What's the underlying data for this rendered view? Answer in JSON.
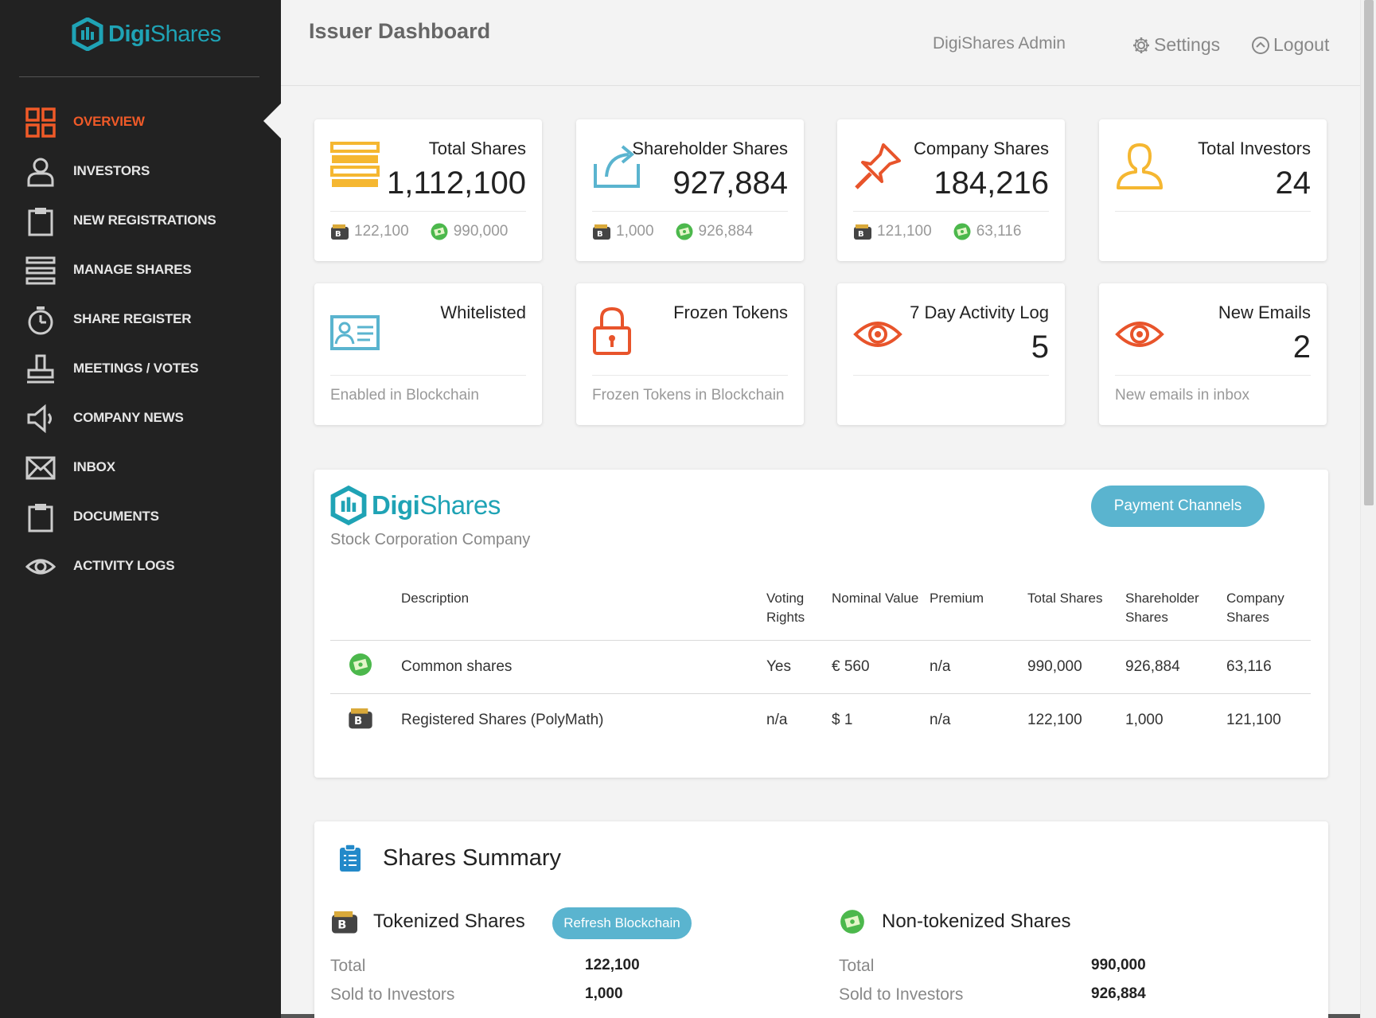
{
  "brand": {
    "name_bold": "Digi",
    "name_light": "Shares",
    "accent": "#1fa3b5",
    "active_color": "#f05a28"
  },
  "sidebar": {
    "items": [
      {
        "label": "OVERVIEW",
        "icon": "grid-icon"
      },
      {
        "label": "INVESTORS",
        "icon": "user-icon"
      },
      {
        "label": "NEW REGISTRATIONS",
        "icon": "clipboard-icon"
      },
      {
        "label": "MANAGE SHARES",
        "icon": "list-icon"
      },
      {
        "label": "SHARE REGISTER",
        "icon": "stopwatch-icon"
      },
      {
        "label": "MEETINGS / VOTES",
        "icon": "stamp-icon"
      },
      {
        "label": "COMPANY NEWS",
        "icon": "megaphone-icon"
      },
      {
        "label": "INBOX",
        "icon": "envelope-icon"
      },
      {
        "label": "DOCUMENTS",
        "icon": "clipboard-icon"
      },
      {
        "label": "ACTIVITY LOGS",
        "icon": "eye-icon"
      }
    ]
  },
  "header": {
    "title": "Issuer Dashboard",
    "user": "DigiShares Admin",
    "settings": "Settings",
    "logout": "Logout"
  },
  "stats": [
    {
      "title": "Total Shares",
      "value": "1,112,100",
      "tokenized": "122,100",
      "non_tokenized": "990,000"
    },
    {
      "title": "Shareholder Shares",
      "value": "927,884",
      "tokenized": "1,000",
      "non_tokenized": "926,884"
    },
    {
      "title": "Company Shares",
      "value": "184,216",
      "tokenized": "121,100",
      "non_tokenized": "63,116"
    },
    {
      "title": "Total Investors",
      "value": "24"
    },
    {
      "title": "Whitelisted",
      "footer": "Enabled in Blockchain"
    },
    {
      "title": "Frozen Tokens",
      "footer": "Frozen Tokens in Blockchain"
    },
    {
      "title": "7 Day Activity Log",
      "value": "5"
    },
    {
      "title": "New Emails",
      "value": "2",
      "footer": "New emails in inbox"
    }
  ],
  "company": {
    "subtitle": "Stock Corporation Company",
    "payment_button": "Payment Channels",
    "table": {
      "headers": [
        "Description",
        "Voting Rights",
        "Nominal Value",
        "Premium",
        "Total Shares",
        "Shareholder Shares",
        "Company Shares"
      ],
      "rows": [
        {
          "description": "Common shares",
          "voting": "Yes",
          "nominal": "€ 560",
          "premium": "n/a",
          "total": "990,000",
          "shareholder": "926,884",
          "company": "63,116"
        },
        {
          "description": "Registered Shares (PolyMath)",
          "voting": "n/a",
          "nominal": "$ 1",
          "premium": "n/a",
          "total": "122,100",
          "shareholder": "1,000",
          "company": "121,100"
        }
      ]
    }
  },
  "summary": {
    "title": "Shares Summary",
    "tokenized": {
      "label": "Tokenized Shares",
      "refresh": "Refresh Blockchain",
      "total_label": "Total",
      "total": "122,100",
      "sold_label": "Sold to Investors",
      "sold": "1,000"
    },
    "non_tokenized": {
      "label": "Non-tokenized Shares",
      "total_label": "Total",
      "total": "990,000",
      "sold_label": "Sold to Investors",
      "sold": "926,884"
    }
  }
}
